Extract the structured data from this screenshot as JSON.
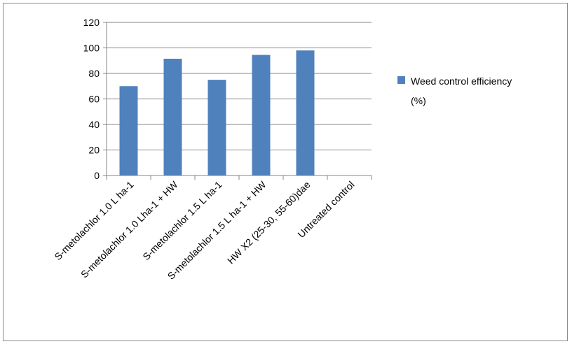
{
  "chart_data": {
    "type": "bar",
    "categories": [
      "S-metolachlor  1.0 L ha-1",
      "S-metolachlor  1.0 Lha-1 + HW",
      "S-metolachlor  1.5 L ha-1",
      "S-metolachlor 1.5 L ha-1 + HW",
      "HW X2 (25-30, 55-60)dae",
      "Untreated control"
    ],
    "series": [
      {
        "name": "Weed control efficiency (%)",
        "values": [
          70,
          91.5,
          75,
          94.5,
          98,
          0
        ]
      }
    ],
    "ylim": [
      0,
      120
    ],
    "yticks": [
      0,
      20,
      40,
      60,
      80,
      100,
      120
    ],
    "grid": true,
    "legend": "right",
    "legend_lines": [
      "Weed control efficiency",
      "(%)"
    ],
    "colors": {
      "bar": "#4f81bd",
      "grid": "#868686",
      "axis": "#868686"
    }
  }
}
